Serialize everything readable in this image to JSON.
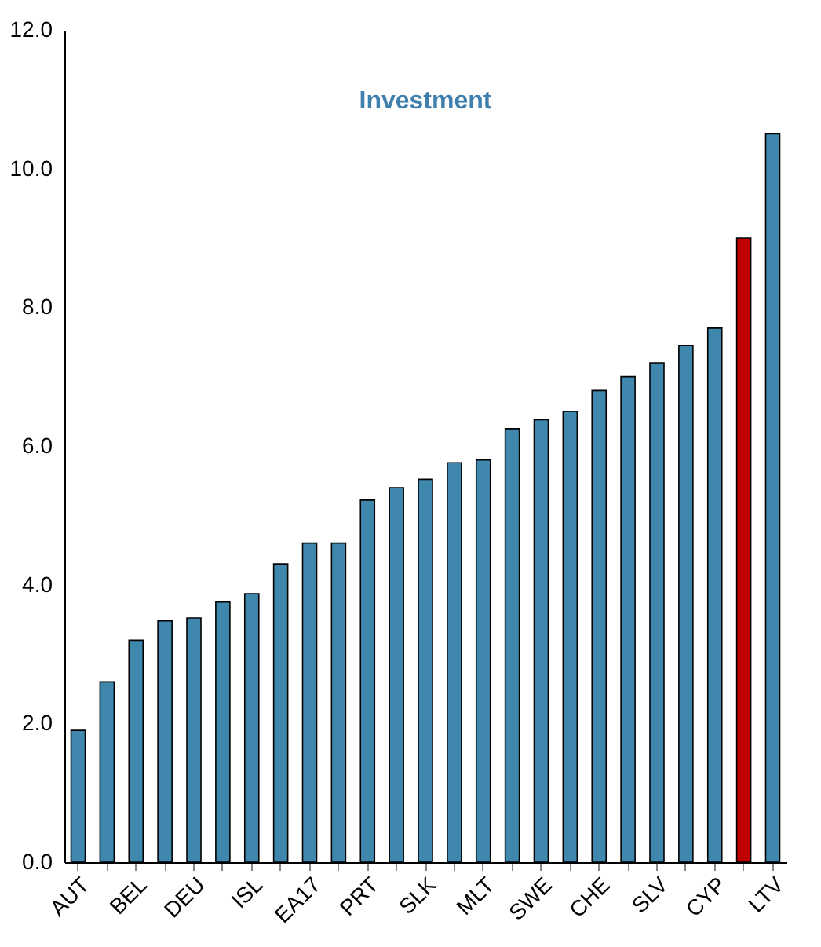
{
  "chart_data": {
    "type": "bar",
    "title": "Investment",
    "categories": [
      "AUT",
      null,
      "BEL",
      null,
      "DEU",
      null,
      "ISL",
      null,
      "EA17",
      null,
      "PRT",
      null,
      "SLK",
      null,
      "MLT",
      null,
      "SWE",
      null,
      "CHE",
      null,
      "SLV",
      null,
      "CYP",
      null,
      "LTV"
    ],
    "values": [
      1.9,
      2.6,
      3.2,
      3.48,
      3.52,
      3.75,
      3.87,
      4.3,
      4.6,
      4.6,
      5.22,
      5.4,
      5.52,
      5.76,
      5.8,
      6.25,
      6.38,
      6.5,
      6.8,
      7.0,
      7.2,
      7.45,
      7.7,
      9.0,
      10.5
    ],
    "colors": [
      "#3f87ad",
      "#3f87ad",
      "#3f87ad",
      "#3f87ad",
      "#3f87ad",
      "#3f87ad",
      "#3f87ad",
      "#3f87ad",
      "#3f87ad",
      "#3f87ad",
      "#3f87ad",
      "#3f87ad",
      "#3f87ad",
      "#3f87ad",
      "#3f87ad",
      "#3f87ad",
      "#3f87ad",
      "#3f87ad",
      "#3f87ad",
      "#3f87ad",
      "#3f87ad",
      "#3f87ad",
      "#3f87ad",
      "#c00000",
      "#3f87ad"
    ],
    "ylim": [
      0,
      12
    ],
    "yticks": [
      {
        "value": 0,
        "label": "0.0"
      },
      {
        "value": 2,
        "label": "2.0"
      },
      {
        "value": 4,
        "label": "4.0"
      },
      {
        "value": 6,
        "label": "6.0"
      },
      {
        "value": 8,
        "label": "8.0"
      },
      {
        "value": 10,
        "label": "10.0"
      },
      {
        "value": 12,
        "label": "12.0"
      }
    ],
    "grid": false
  }
}
